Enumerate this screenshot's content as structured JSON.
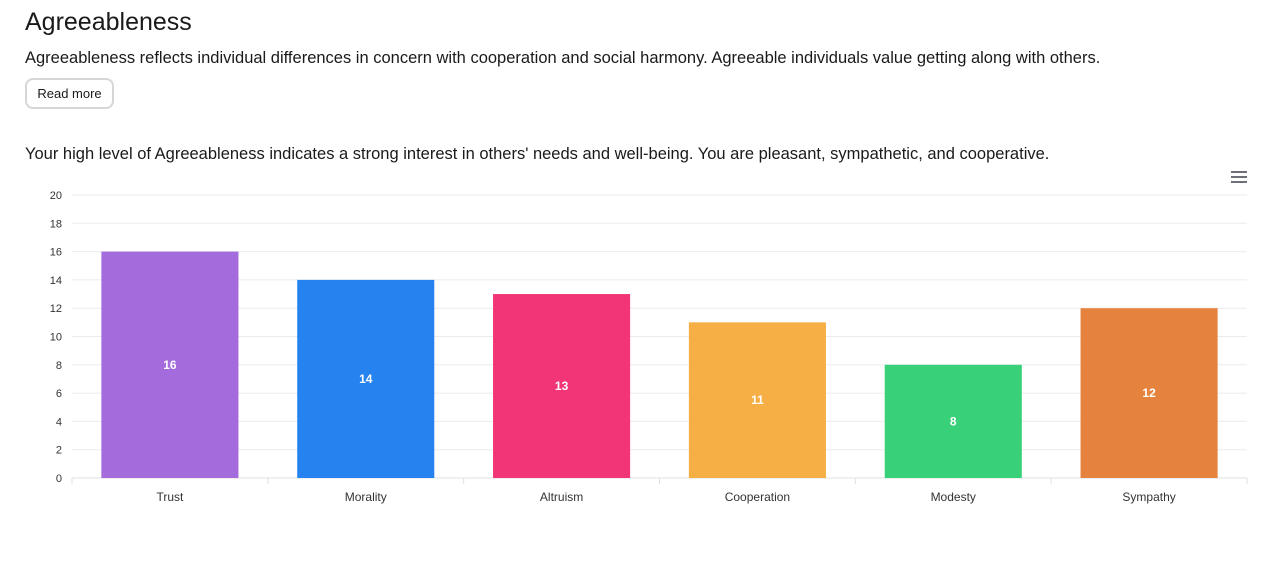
{
  "page": {
    "title": "Agreeableness",
    "description": "Agreeableness reflects individual differences in concern with cooperation and social harmony. Agreeable individuals value getting along with others.",
    "read_more_label": "Read more",
    "summary": "Your high level of Agreeableness indicates a strong interest in others' needs and well-being. You are pleasant, sympathetic, and cooperative."
  },
  "chart_menu": {
    "icon": "hamburger-menu-icon"
  },
  "chart_data": {
    "type": "bar",
    "categories": [
      "Trust",
      "Morality",
      "Altruism",
      "Cooperation",
      "Modesty",
      "Sympathy"
    ],
    "values": [
      16,
      14,
      13,
      11,
      8,
      12
    ],
    "colors": [
      "#a36bdb",
      "#2582ef",
      "#f23577",
      "#f5af44",
      "#38d17a",
      "#e5833e"
    ],
    "title": "",
    "xlabel": "",
    "ylabel": "",
    "ylim": [
      0,
      20
    ],
    "yticks": [
      0,
      2,
      4,
      6,
      8,
      10,
      12,
      14,
      16,
      18,
      20
    ],
    "data_labels": true,
    "grid": true,
    "legend": "none"
  }
}
